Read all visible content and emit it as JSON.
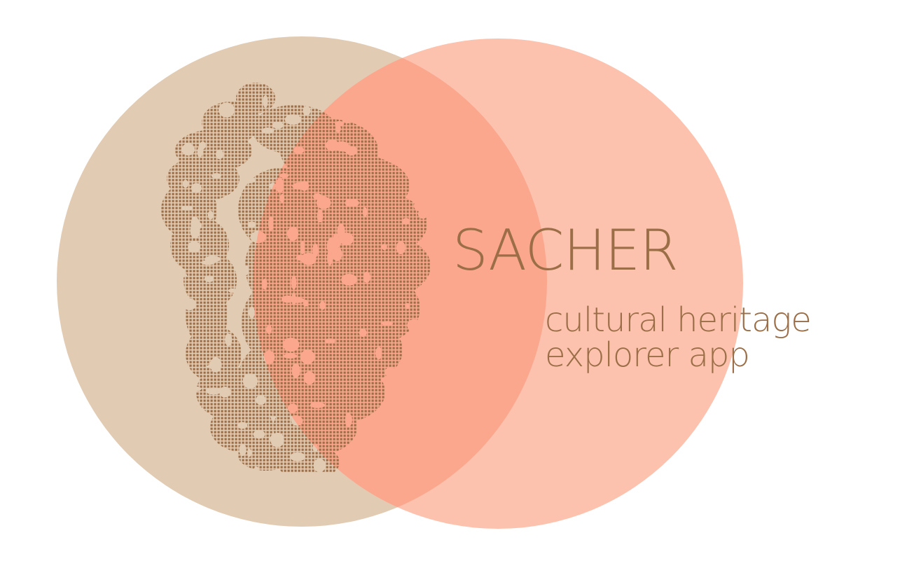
{
  "brand": {
    "title": "SACHER",
    "tagline_line1": "cultural heritage",
    "tagline_line2": "explorer app"
  },
  "colors": {
    "left_circle": "#e2cbb3",
    "right_circle": "#fcc2ae",
    "overlap": "#fba78e",
    "text": "#9b6e47",
    "statue_dots": "#9b6e47"
  },
  "logo": {
    "left_circle_label": "tan-circle",
    "right_circle_label": "salmon-circle",
    "illustration": "dotted-statue-bust-icon"
  }
}
